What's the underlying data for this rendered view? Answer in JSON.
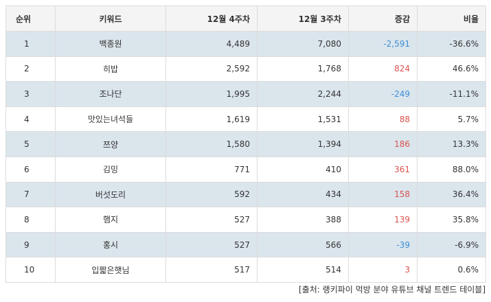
{
  "headers": {
    "rank": "순위",
    "keyword": "키워드",
    "week4": "12월 4주차",
    "week3": "12월 3주차",
    "change": "증감",
    "ratio": "비율"
  },
  "rows": [
    {
      "rank": "1",
      "keyword": "백종원",
      "week4": "4,489",
      "week3": "7,080",
      "change": "-2,591",
      "ratio": "-36.6%",
      "dir": "neg"
    },
    {
      "rank": "2",
      "keyword": "히밥",
      "week4": "2,592",
      "week3": "1,768",
      "change": "824",
      "ratio": "46.6%",
      "dir": "pos"
    },
    {
      "rank": "3",
      "keyword": "조나단",
      "week4": "1,995",
      "week3": "2,244",
      "change": "-249",
      "ratio": "-11.1%",
      "dir": "neg"
    },
    {
      "rank": "4",
      "keyword": "맛있는녀석들",
      "week4": "1,619",
      "week3": "1,531",
      "change": "88",
      "ratio": "5.7%",
      "dir": "pos"
    },
    {
      "rank": "5",
      "keyword": "쯔양",
      "week4": "1,580",
      "week3": "1,394",
      "change": "186",
      "ratio": "13.3%",
      "dir": "pos"
    },
    {
      "rank": "6",
      "keyword": "김밍",
      "week4": "771",
      "week3": "410",
      "change": "361",
      "ratio": "88.0%",
      "dir": "pos"
    },
    {
      "rank": "7",
      "keyword": "버섯도리",
      "week4": "592",
      "week3": "434",
      "change": "158",
      "ratio": "36.4%",
      "dir": "pos"
    },
    {
      "rank": "8",
      "keyword": "햄지",
      "week4": "527",
      "week3": "388",
      "change": "139",
      "ratio": "35.8%",
      "dir": "pos"
    },
    {
      "rank": "9",
      "keyword": "홍시",
      "week4": "527",
      "week3": "566",
      "change": "-39",
      "ratio": "-6.9%",
      "dir": "neg"
    },
    {
      "rank": "10",
      "keyword": "입짧은햇님",
      "week4": "517",
      "week3": "514",
      "change": "3",
      "ratio": "0.6%",
      "dir": "pos"
    }
  ],
  "colors": {
    "negative": "#3a8fd6",
    "positive": "#d9534f",
    "alt_row": "#dbe5ec",
    "header_bg": "#f4f4f4"
  },
  "source": "[출처: 랭키파이 먹방 분야 유튜브 채널 트렌드 테이블]"
}
